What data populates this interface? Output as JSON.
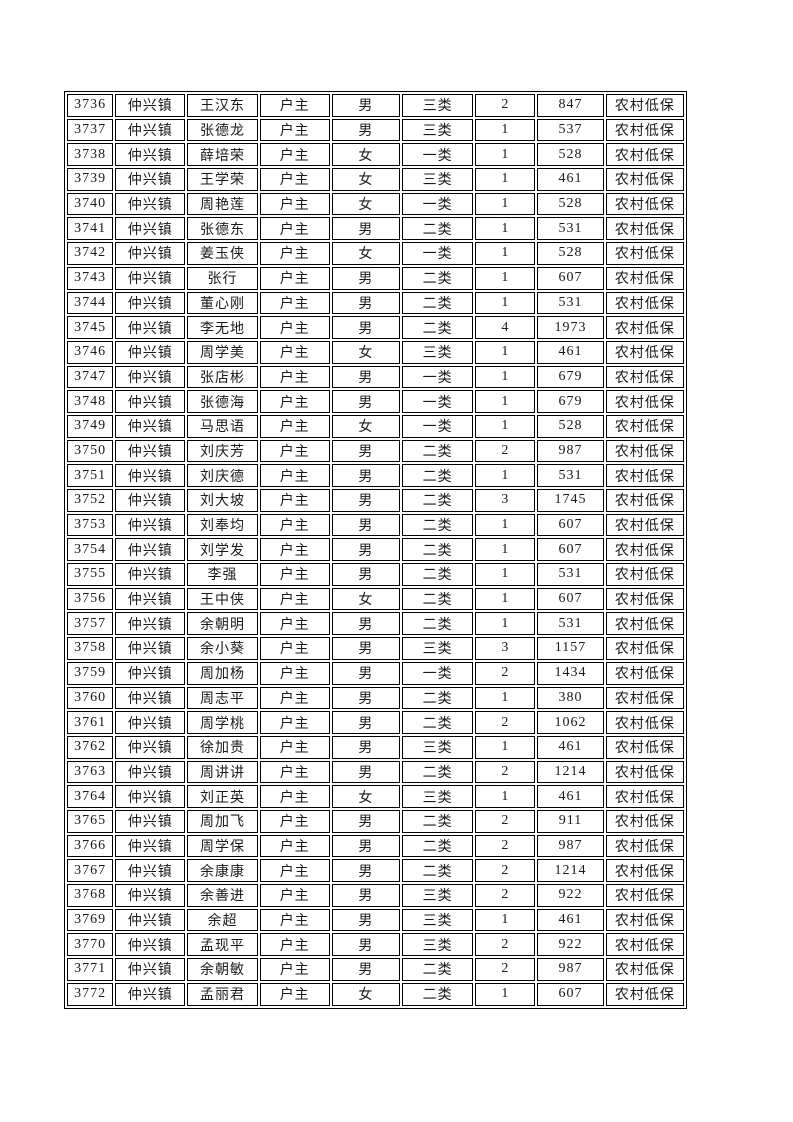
{
  "table": {
    "columns": [
      "serial_number",
      "town",
      "name",
      "relation_to_head",
      "gender",
      "category",
      "household_count",
      "amount",
      "assistance_type"
    ],
    "border_color": "#000000",
    "text_color": "#1a1a1a",
    "rows": [
      [
        "3736",
        "仲兴镇",
        "王汉东",
        "户主",
        "男",
        "三类",
        "2",
        "847",
        "农村低保"
      ],
      [
        "3737",
        "仲兴镇",
        "张德龙",
        "户主",
        "男",
        "三类",
        "1",
        "537",
        "农村低保"
      ],
      [
        "3738",
        "仲兴镇",
        "薛培荣",
        "户主",
        "女",
        "一类",
        "1",
        "528",
        "农村低保"
      ],
      [
        "3739",
        "仲兴镇",
        "王学荣",
        "户主",
        "女",
        "三类",
        "1",
        "461",
        "农村低保"
      ],
      [
        "3740",
        "仲兴镇",
        "周艳莲",
        "户主",
        "女",
        "一类",
        "1",
        "528",
        "农村低保"
      ],
      [
        "3741",
        "仲兴镇",
        "张德东",
        "户主",
        "男",
        "二类",
        "1",
        "531",
        "农村低保"
      ],
      [
        "3742",
        "仲兴镇",
        "姜玉侠",
        "户主",
        "女",
        "一类",
        "1",
        "528",
        "农村低保"
      ],
      [
        "3743",
        "仲兴镇",
        "张行",
        "户主",
        "男",
        "二类",
        "1",
        "607",
        "农村低保"
      ],
      [
        "3744",
        "仲兴镇",
        "董心刚",
        "户主",
        "男",
        "二类",
        "1",
        "531",
        "农村低保"
      ],
      [
        "3745",
        "仲兴镇",
        "李无地",
        "户主",
        "男",
        "二类",
        "4",
        "1973",
        "农村低保"
      ],
      [
        "3746",
        "仲兴镇",
        "周学美",
        "户主",
        "女",
        "三类",
        "1",
        "461",
        "农村低保"
      ],
      [
        "3747",
        "仲兴镇",
        "张店彬",
        "户主",
        "男",
        "一类",
        "1",
        "679",
        "农村低保"
      ],
      [
        "3748",
        "仲兴镇",
        "张德海",
        "户主",
        "男",
        "一类",
        "1",
        "679",
        "农村低保"
      ],
      [
        "3749",
        "仲兴镇",
        "马思语",
        "户主",
        "女",
        "一类",
        "1",
        "528",
        "农村低保"
      ],
      [
        "3750",
        "仲兴镇",
        "刘庆芳",
        "户主",
        "男",
        "二类",
        "2",
        "987",
        "农村低保"
      ],
      [
        "3751",
        "仲兴镇",
        "刘庆德",
        "户主",
        "男",
        "二类",
        "1",
        "531",
        "农村低保"
      ],
      [
        "3752",
        "仲兴镇",
        "刘大坡",
        "户主",
        "男",
        "二类",
        "3",
        "1745",
        "农村低保"
      ],
      [
        "3753",
        "仲兴镇",
        "刘奉均",
        "户主",
        "男",
        "二类",
        "1",
        "607",
        "农村低保"
      ],
      [
        "3754",
        "仲兴镇",
        "刘学发",
        "户主",
        "男",
        "二类",
        "1",
        "607",
        "农村低保"
      ],
      [
        "3755",
        "仲兴镇",
        "李强",
        "户主",
        "男",
        "二类",
        "1",
        "531",
        "农村低保"
      ],
      [
        "3756",
        "仲兴镇",
        "王中侠",
        "户主",
        "女",
        "二类",
        "1",
        "607",
        "农村低保"
      ],
      [
        "3757",
        "仲兴镇",
        "余朝明",
        "户主",
        "男",
        "二类",
        "1",
        "531",
        "农村低保"
      ],
      [
        "3758",
        "仲兴镇",
        "余小葵",
        "户主",
        "男",
        "三类",
        "3",
        "1157",
        "农村低保"
      ],
      [
        "3759",
        "仲兴镇",
        "周加杨",
        "户主",
        "男",
        "一类",
        "2",
        "1434",
        "农村低保"
      ],
      [
        "3760",
        "仲兴镇",
        "周志平",
        "户主",
        "男",
        "二类",
        "1",
        "380",
        "农村低保"
      ],
      [
        "3761",
        "仲兴镇",
        "周学桃",
        "户主",
        "男",
        "二类",
        "2",
        "1062",
        "农村低保"
      ],
      [
        "3762",
        "仲兴镇",
        "徐加贵",
        "户主",
        "男",
        "三类",
        "1",
        "461",
        "农村低保"
      ],
      [
        "3763",
        "仲兴镇",
        "周讲讲",
        "户主",
        "男",
        "二类",
        "2",
        "1214",
        "农村低保"
      ],
      [
        "3764",
        "仲兴镇",
        "刘正英",
        "户主",
        "女",
        "三类",
        "1",
        "461",
        "农村低保"
      ],
      [
        "3765",
        "仲兴镇",
        "周加飞",
        "户主",
        "男",
        "二类",
        "2",
        "911",
        "农村低保"
      ],
      [
        "3766",
        "仲兴镇",
        "周学保",
        "户主",
        "男",
        "二类",
        "2",
        "987",
        "农村低保"
      ],
      [
        "3767",
        "仲兴镇",
        "余康康",
        "户主",
        "男",
        "二类",
        "2",
        "1214",
        "农村低保"
      ],
      [
        "3768",
        "仲兴镇",
        "余善进",
        "户主",
        "男",
        "三类",
        "2",
        "922",
        "农村低保"
      ],
      [
        "3769",
        "仲兴镇",
        "余超",
        "户主",
        "男",
        "三类",
        "1",
        "461",
        "农村低保"
      ],
      [
        "3770",
        "仲兴镇",
        "孟现平",
        "户主",
        "男",
        "三类",
        "2",
        "922",
        "农村低保"
      ],
      [
        "3771",
        "仲兴镇",
        "余朝敏",
        "户主",
        "男",
        "二类",
        "2",
        "987",
        "农村低保"
      ],
      [
        "3772",
        "仲兴镇",
        "孟丽君",
        "户主",
        "女",
        "二类",
        "1",
        "607",
        "农村低保"
      ]
    ]
  }
}
